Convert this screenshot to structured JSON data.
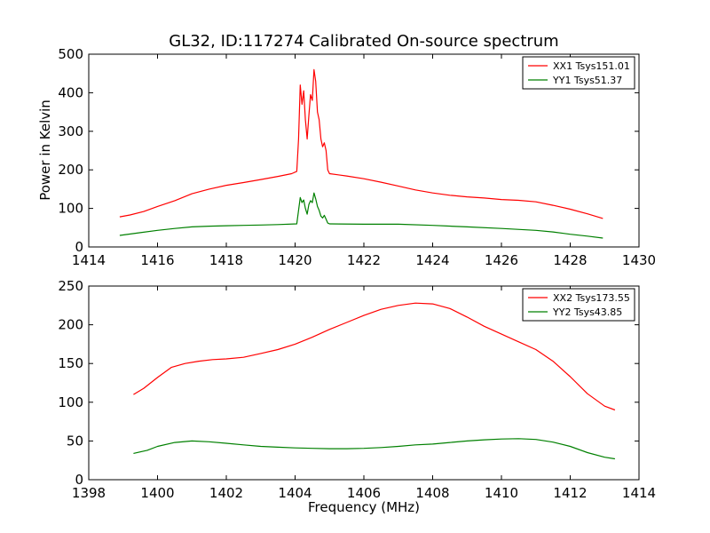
{
  "figure_title": "GL32, ID:117274 Calibrated On-source spectrum",
  "chart_data": [
    {
      "type": "line",
      "title": "GL32, ID:117274 Calibrated On-source spectrum",
      "xlabel": "",
      "ylabel": "Power in Kelvin",
      "xlim": [
        1414,
        1430
      ],
      "ylim": [
        0,
        500
      ],
      "xticks": [
        "1414",
        "1416",
        "1418",
        "1420",
        "1422",
        "1424",
        "1426",
        "1428",
        "1430"
      ],
      "yticks": [
        "0",
        "100",
        "200",
        "300",
        "400",
        "500"
      ],
      "grid": false,
      "legend_position": "top-right",
      "series": [
        {
          "name": "XX1 Tsys151.01",
          "color": "#ff0000",
          "points": [
            [
              1414.9,
              78
            ],
            [
              1415.2,
              83
            ],
            [
              1415.6,
              92
            ],
            [
              1416.0,
              105
            ],
            [
              1416.5,
              120
            ],
            [
              1417.0,
              138
            ],
            [
              1417.5,
              150
            ],
            [
              1418.0,
              160
            ],
            [
              1418.5,
              167
            ],
            [
              1419.0,
              175
            ],
            [
              1419.5,
              183
            ],
            [
              1419.9,
              190
            ],
            [
              1420.05,
              196
            ],
            [
              1420.1,
              280
            ],
            [
              1420.15,
              420
            ],
            [
              1420.2,
              370
            ],
            [
              1420.25,
              405
            ],
            [
              1420.3,
              330
            ],
            [
              1420.35,
              280
            ],
            [
              1420.4,
              340
            ],
            [
              1420.45,
              395
            ],
            [
              1420.5,
              380
            ],
            [
              1420.55,
              460
            ],
            [
              1420.6,
              430
            ],
            [
              1420.65,
              350
            ],
            [
              1420.7,
              330
            ],
            [
              1420.75,
              280
            ],
            [
              1420.8,
              260
            ],
            [
              1420.85,
              270
            ],
            [
              1420.9,
              250
            ],
            [
              1420.95,
              200
            ],
            [
              1421.0,
              190
            ],
            [
              1421.5,
              184
            ],
            [
              1422.0,
              177
            ],
            [
              1422.5,
              168
            ],
            [
              1423.0,
              158
            ],
            [
              1423.5,
              148
            ],
            [
              1424.0,
              140
            ],
            [
              1424.5,
              134
            ],
            [
              1425.0,
              130
            ],
            [
              1425.5,
              127
            ],
            [
              1426.0,
              123
            ],
            [
              1426.5,
              121
            ],
            [
              1427.0,
              117
            ],
            [
              1427.5,
              108
            ],
            [
              1428.0,
              98
            ],
            [
              1428.5,
              86
            ],
            [
              1428.95,
              74
            ]
          ]
        },
        {
          "name": "YY1 Tsys51.37",
          "color": "#008000",
          "points": [
            [
              1414.9,
              30
            ],
            [
              1415.5,
              37
            ],
            [
              1416.0,
              43
            ],
            [
              1416.5,
              48
            ],
            [
              1417.0,
              52
            ],
            [
              1417.5,
              54
            ],
            [
              1418.0,
              55
            ],
            [
              1418.5,
              56
            ],
            [
              1419.0,
              57
            ],
            [
              1419.5,
              58
            ],
            [
              1420.05,
              60
            ],
            [
              1420.1,
              95
            ],
            [
              1420.15,
              128
            ],
            [
              1420.2,
              115
            ],
            [
              1420.25,
              122
            ],
            [
              1420.3,
              100
            ],
            [
              1420.35,
              85
            ],
            [
              1420.4,
              110
            ],
            [
              1420.45,
              120
            ],
            [
              1420.5,
              115
            ],
            [
              1420.55,
              140
            ],
            [
              1420.6,
              125
            ],
            [
              1420.65,
              105
            ],
            [
              1420.7,
              95
            ],
            [
              1420.75,
              80
            ],
            [
              1420.8,
              75
            ],
            [
              1420.85,
              82
            ],
            [
              1420.9,
              72
            ],
            [
              1420.95,
              62
            ],
            [
              1421.0,
              60
            ],
            [
              1422.0,
              59
            ],
            [
              1423.0,
              59
            ],
            [
              1424.0,
              56
            ],
            [
              1425.0,
              52
            ],
            [
              1426.0,
              48
            ],
            [
              1427.0,
              43
            ],
            [
              1427.5,
              39
            ],
            [
              1428.0,
              33
            ],
            [
              1428.5,
              28
            ],
            [
              1428.95,
              23
            ]
          ]
        }
      ]
    },
    {
      "type": "line",
      "title": "",
      "xlabel": "Frequency (MHz)",
      "ylabel": "",
      "xlim": [
        1398,
        1414
      ],
      "ylim": [
        0,
        250
      ],
      "xticks": [
        "1398",
        "1400",
        "1402",
        "1404",
        "1406",
        "1408",
        "1410",
        "1412",
        "1414"
      ],
      "yticks": [
        "0",
        "50",
        "100",
        "150",
        "200",
        "250"
      ],
      "grid": false,
      "legend_position": "top-right",
      "series": [
        {
          "name": "XX2 Tsys173.55",
          "color": "#ff0000",
          "points": [
            [
              1399.3,
              110
            ],
            [
              1399.6,
              118
            ],
            [
              1400.0,
              132
            ],
            [
              1400.4,
              145
            ],
            [
              1400.8,
              150
            ],
            [
              1401.2,
              153
            ],
            [
              1401.6,
              155
            ],
            [
              1402.0,
              156
            ],
            [
              1402.5,
              158
            ],
            [
              1403.0,
              163
            ],
            [
              1403.5,
              168
            ],
            [
              1404.0,
              175
            ],
            [
              1404.5,
              184
            ],
            [
              1405.0,
              194
            ],
            [
              1405.5,
              203
            ],
            [
              1406.0,
              212
            ],
            [
              1406.5,
              220
            ],
            [
              1407.0,
              225
            ],
            [
              1407.5,
              228
            ],
            [
              1408.0,
              227
            ],
            [
              1408.5,
              221
            ],
            [
              1409.0,
              210
            ],
            [
              1409.5,
              198
            ],
            [
              1410.0,
              188
            ],
            [
              1410.5,
              178
            ],
            [
              1411.0,
              168
            ],
            [
              1411.5,
              153
            ],
            [
              1412.0,
              133
            ],
            [
              1412.5,
              111
            ],
            [
              1413.0,
              95
            ],
            [
              1413.3,
              90
            ]
          ]
        },
        {
          "name": "YY2 Tsys43.85",
          "color": "#008000",
          "points": [
            [
              1399.3,
              34
            ],
            [
              1399.7,
              38
            ],
            [
              1400.0,
              43
            ],
            [
              1400.5,
              48
            ],
            [
              1401.0,
              50
            ],
            [
              1401.5,
              49
            ],
            [
              1402.0,
              47
            ],
            [
              1402.5,
              45
            ],
            [
              1403.0,
              43
            ],
            [
              1403.5,
              42
            ],
            [
              1404.0,
              41
            ],
            [
              1404.5,
              40.5
            ],
            [
              1405.0,
              40
            ],
            [
              1405.5,
              40
            ],
            [
              1406.0,
              40.5
            ],
            [
              1406.5,
              41.5
            ],
            [
              1407.0,
              43
            ],
            [
              1407.5,
              45
            ],
            [
              1408.0,
              46
            ],
            [
              1408.5,
              48
            ],
            [
              1409.0,
              50
            ],
            [
              1409.5,
              51.5
            ],
            [
              1410.0,
              52.5
            ],
            [
              1410.5,
              53
            ],
            [
              1411.0,
              52
            ],
            [
              1411.5,
              48.5
            ],
            [
              1412.0,
              43
            ],
            [
              1412.5,
              35
            ],
            [
              1413.0,
              29
            ],
            [
              1413.3,
              27
            ]
          ]
        }
      ]
    }
  ]
}
